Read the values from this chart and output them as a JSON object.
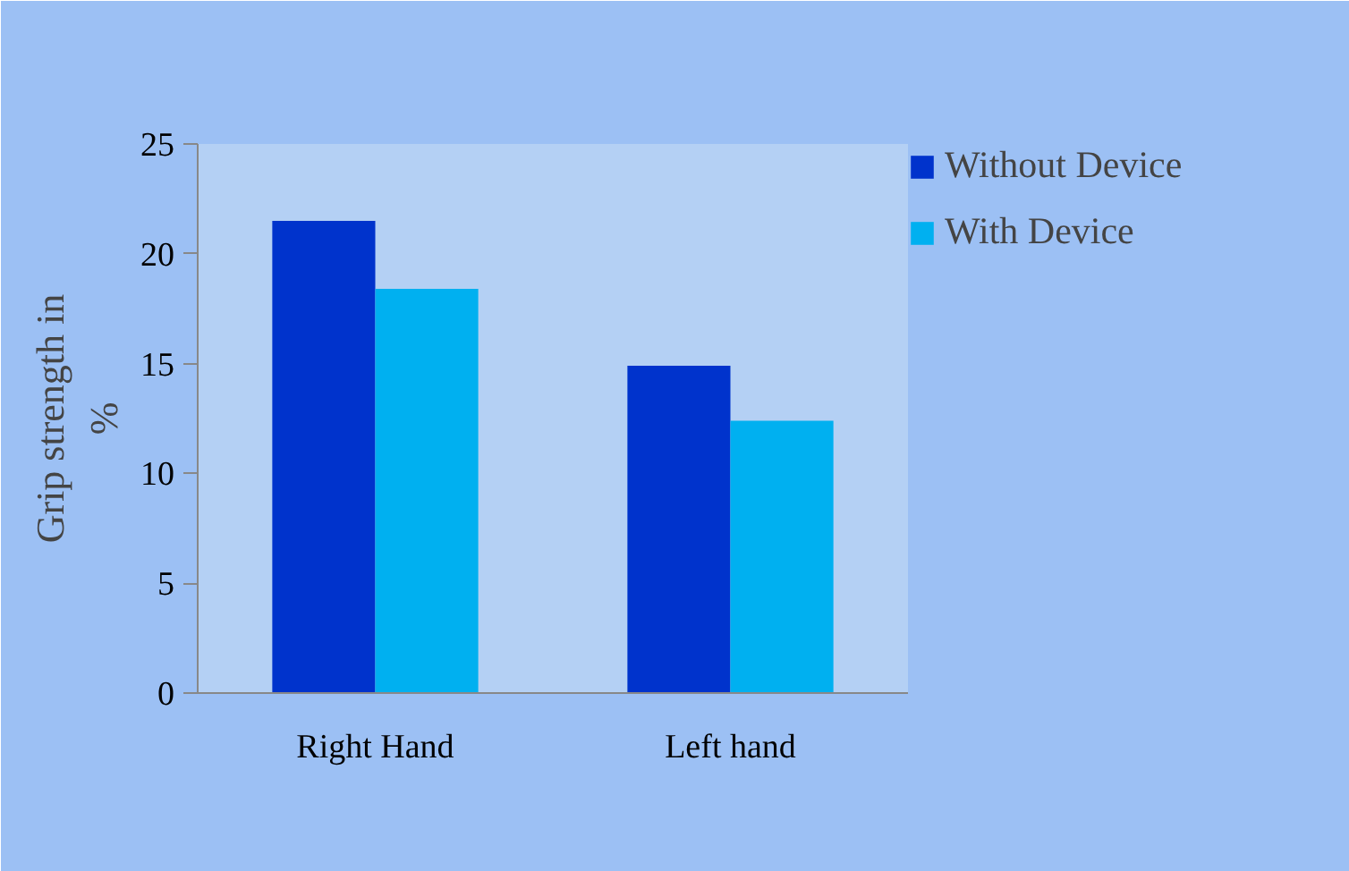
{
  "chart_data": {
    "type": "bar",
    "ylabel": "Grip strength in %",
    "categories": [
      "Right Hand",
      "Left hand"
    ],
    "series": [
      {
        "name": "Without Device",
        "color": "#0033cc",
        "values": [
          21.5,
          14.9
        ]
      },
      {
        "name": "With Device",
        "color": "#00b0f0",
        "values": [
          18.4,
          12.4
        ]
      }
    ],
    "ylim": [
      0,
      25
    ],
    "yticks": [
      0,
      5,
      10,
      15,
      20,
      25
    ],
    "grid": false,
    "legend": "top right"
  }
}
